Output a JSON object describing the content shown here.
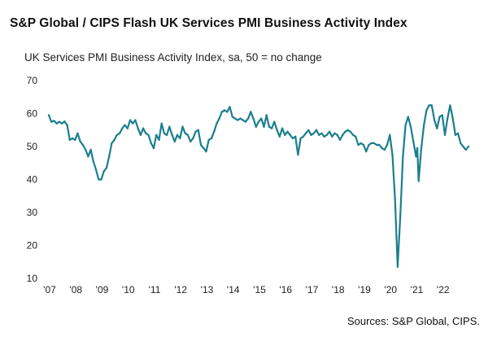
{
  "chart_data": {
    "type": "line",
    "title": "S&P Global / CIPS Flash UK Services PMI Business Activity Index",
    "subtitle": "UK Services PMI Business Activity Index, sa, 50 = no change",
    "source": "Sources: S&P Global, CIPS.",
    "xlabel": "",
    "ylabel": "",
    "ylim": [
      10,
      70
    ],
    "y_ticks": [
      "70",
      "60",
      "50",
      "40",
      "30",
      "20",
      "10"
    ],
    "x_tick_labels": [
      "'07",
      "'08",
      "'09",
      "'10",
      "'11",
      "'12",
      "'13",
      "'14",
      "'15",
      "'16",
      "'17",
      "'18",
      "'19",
      "'20",
      "'21",
      "'22"
    ],
    "grid": false,
    "color": "#1b7f8e",
    "series": [
      {
        "name": "UK Services PMI Business Activity Index",
        "points": [
          [
            2007.0,
            59.5
          ],
          [
            2007.1,
            57.5
          ],
          [
            2007.2,
            57.8
          ],
          [
            2007.3,
            57.0
          ],
          [
            2007.4,
            57.5
          ],
          [
            2007.5,
            57.0
          ],
          [
            2007.6,
            57.6
          ],
          [
            2007.7,
            56.5
          ],
          [
            2007.8,
            52.0
          ],
          [
            2007.9,
            52.5
          ],
          [
            2008.0,
            52.0
          ],
          [
            2008.1,
            54.0
          ],
          [
            2008.2,
            51.5
          ],
          [
            2008.3,
            50.5
          ],
          [
            2008.4,
            49.0
          ],
          [
            2008.5,
            47.0
          ],
          [
            2008.6,
            49.0
          ],
          [
            2008.7,
            45.5
          ],
          [
            2008.8,
            43.0
          ],
          [
            2008.9,
            40.0
          ],
          [
            2009.0,
            40.0
          ],
          [
            2009.1,
            42.5
          ],
          [
            2009.2,
            43.5
          ],
          [
            2009.3,
            47.0
          ],
          [
            2009.4,
            51.0
          ],
          [
            2009.5,
            52.0
          ],
          [
            2009.6,
            53.5
          ],
          [
            2009.7,
            54.0
          ],
          [
            2009.8,
            55.5
          ],
          [
            2009.9,
            56.5
          ],
          [
            2010.0,
            55.5
          ],
          [
            2010.1,
            58.0
          ],
          [
            2010.2,
            57.0
          ],
          [
            2010.3,
            58.0
          ],
          [
            2010.4,
            55.5
          ],
          [
            2010.5,
            53.5
          ],
          [
            2010.6,
            55.5
          ],
          [
            2010.7,
            54.0
          ],
          [
            2010.8,
            53.5
          ],
          [
            2010.9,
            51.0
          ],
          [
            2011.0,
            49.5
          ],
          [
            2011.1,
            53.5
          ],
          [
            2011.2,
            52.0
          ],
          [
            2011.3,
            57.0
          ],
          [
            2011.4,
            54.0
          ],
          [
            2011.5,
            53.5
          ],
          [
            2011.6,
            56.0
          ],
          [
            2011.7,
            53.5
          ],
          [
            2011.8,
            51.5
          ],
          [
            2011.9,
            53.5
          ],
          [
            2012.0,
            52.5
          ],
          [
            2012.1,
            56.0
          ],
          [
            2012.2,
            54.0
          ],
          [
            2012.3,
            53.5
          ],
          [
            2012.4,
            51.5
          ],
          [
            2012.5,
            52.5
          ],
          [
            2012.6,
            54.5
          ],
          [
            2012.7,
            55.0
          ],
          [
            2012.8,
            50.5
          ],
          [
            2012.9,
            49.5
          ],
          [
            2013.0,
            48.5
          ],
          [
            2013.1,
            52.0
          ],
          [
            2013.2,
            52.5
          ],
          [
            2013.3,
            54.5
          ],
          [
            2013.4,
            57.0
          ],
          [
            2013.5,
            58.5
          ],
          [
            2013.6,
            60.5
          ],
          [
            2013.7,
            61.0
          ],
          [
            2013.8,
            60.5
          ],
          [
            2013.9,
            62.0
          ],
          [
            2014.0,
            59.0
          ],
          [
            2014.1,
            58.5
          ],
          [
            2014.2,
            58.0
          ],
          [
            2014.3,
            58.5
          ],
          [
            2014.4,
            58.0
          ],
          [
            2014.5,
            57.5
          ],
          [
            2014.6,
            58.5
          ],
          [
            2014.7,
            60.5
          ],
          [
            2014.8,
            58.5
          ],
          [
            2014.9,
            56.0
          ],
          [
            2015.0,
            57.5
          ],
          [
            2015.1,
            58.5
          ],
          [
            2015.2,
            56.0
          ],
          [
            2015.3,
            59.5
          ],
          [
            2015.4,
            56.0
          ],
          [
            2015.5,
            55.5
          ],
          [
            2015.6,
            57.5
          ],
          [
            2015.7,
            55.0
          ],
          [
            2015.8,
            53.0
          ],
          [
            2015.9,
            55.5
          ],
          [
            2016.0,
            53.5
          ],
          [
            2016.1,
            54.5
          ],
          [
            2016.2,
            53.5
          ],
          [
            2016.3,
            52.5
          ],
          [
            2016.4,
            53.0
          ],
          [
            2016.5,
            47.5
          ],
          [
            2016.6,
            52.5
          ],
          [
            2016.7,
            53.0
          ],
          [
            2016.8,
            54.0
          ],
          [
            2016.9,
            55.0
          ],
          [
            2017.0,
            53.5
          ],
          [
            2017.1,
            54.0
          ],
          [
            2017.2,
            55.0
          ],
          [
            2017.3,
            53.5
          ],
          [
            2017.4,
            54.0
          ],
          [
            2017.5,
            53.0
          ],
          [
            2017.6,
            53.5
          ],
          [
            2017.7,
            54.5
          ],
          [
            2017.8,
            53.0
          ],
          [
            2017.9,
            54.0
          ],
          [
            2018.0,
            53.5
          ],
          [
            2018.1,
            52.0
          ],
          [
            2018.2,
            53.5
          ],
          [
            2018.3,
            54.5
          ],
          [
            2018.4,
            55.0
          ],
          [
            2018.5,
            54.5
          ],
          [
            2018.6,
            53.5
          ],
          [
            2018.7,
            53.0
          ],
          [
            2018.8,
            50.5
          ],
          [
            2018.9,
            51.0
          ],
          [
            2019.0,
            50.5
          ],
          [
            2019.1,
            48.5
          ],
          [
            2019.2,
            50.5
          ],
          [
            2019.3,
            51.0
          ],
          [
            2019.4,
            51.0
          ],
          [
            2019.5,
            50.5
          ],
          [
            2019.6,
            50.5
          ],
          [
            2019.7,
            49.5
          ],
          [
            2019.8,
            49.0
          ],
          [
            2019.9,
            50.5
          ],
          [
            2020.0,
            53.5
          ],
          [
            2020.1,
            47.5
          ],
          [
            2020.2,
            34.0
          ],
          [
            2020.3,
            13.5
          ],
          [
            2020.4,
            29.0
          ],
          [
            2020.5,
            47.0
          ],
          [
            2020.6,
            56.5
          ],
          [
            2020.7,
            59.0
          ],
          [
            2020.8,
            56.0
          ],
          [
            2020.9,
            51.5
          ],
          [
            2021.0,
            47.0
          ],
          [
            2021.05,
            49.5
          ],
          [
            2021.1,
            39.5
          ],
          [
            2021.2,
            49.5
          ],
          [
            2021.3,
            56.5
          ],
          [
            2021.4,
            61.0
          ],
          [
            2021.5,
            62.5
          ],
          [
            2021.6,
            62.5
          ],
          [
            2021.7,
            58.0
          ],
          [
            2021.8,
            55.5
          ],
          [
            2021.9,
            59.0
          ],
          [
            2022.0,
            59.5
          ],
          [
            2022.1,
            53.5
          ],
          [
            2022.2,
            58.5
          ],
          [
            2022.3,
            62.5
          ],
          [
            2022.4,
            58.5
          ],
          [
            2022.5,
            53.5
          ],
          [
            2022.6,
            54.0
          ],
          [
            2022.7,
            51.0
          ],
          [
            2022.8,
            50.0
          ],
          [
            2022.9,
            49.0
          ],
          [
            2023.0,
            50.0
          ]
        ]
      }
    ]
  }
}
